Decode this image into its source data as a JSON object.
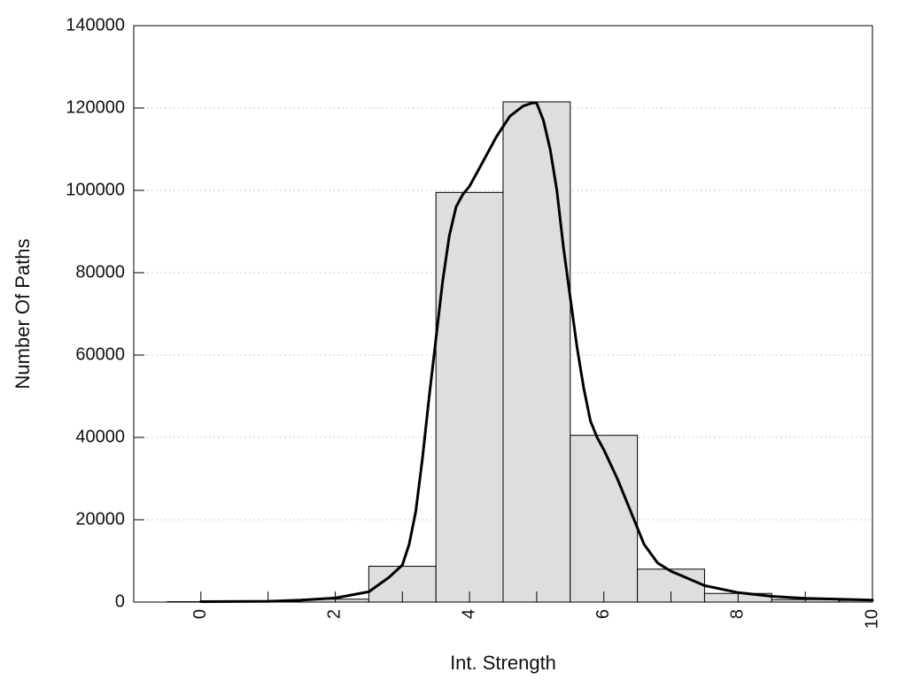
{
  "chart_data": {
    "type": "bar",
    "title": "",
    "xlabel": "Int. Strength",
    "ylabel": "Number Of Paths",
    "xlim": [
      -1,
      10
    ],
    "ylim": [
      0,
      140000
    ],
    "x_ticks": [
      "0",
      "2",
      "4",
      "6",
      "8",
      "10"
    ],
    "y_ticks": [
      "0",
      "20000",
      "40000",
      "60000",
      "80000",
      "100000",
      "120000",
      "140000"
    ],
    "grid": "horizontal-dotted",
    "bar_color": "#dedede",
    "bar_edge_color": "#000000",
    "bins": [
      {
        "x0": -0.5,
        "x1": 0.5,
        "value": 100
      },
      {
        "x0": 0.5,
        "x1": 1.5,
        "value": 150
      },
      {
        "x0": 1.5,
        "x1": 2.5,
        "value": 700
      },
      {
        "x0": 2.5,
        "x1": 3.5,
        "value": 8700
      },
      {
        "x0": 3.5,
        "x1": 4.5,
        "value": 99500
      },
      {
        "x0": 4.5,
        "x1": 5.5,
        "value": 121500
      },
      {
        "x0": 5.5,
        "x1": 6.5,
        "value": 40500
      },
      {
        "x0": 6.5,
        "x1": 7.5,
        "value": 8000
      },
      {
        "x0": 7.5,
        "x1": 8.5,
        "value": 2100
      },
      {
        "x0": 8.5,
        "x1": 9.5,
        "value": 600
      },
      {
        "x0": 9.5,
        "x1": 10.5,
        "value": 400
      }
    ],
    "curve": {
      "color": "#000000",
      "x": [
        0,
        1,
        1.5,
        2,
        2.5,
        2.8,
        3.0,
        3.1,
        3.2,
        3.3,
        3.4,
        3.5,
        3.6,
        3.7,
        3.8,
        3.9,
        4.0,
        4.2,
        4.4,
        4.6,
        4.8,
        4.95,
        5.0,
        5.1,
        5.2,
        5.3,
        5.4,
        5.5,
        5.6,
        5.7,
        5.8,
        5.9,
        6.0,
        6.2,
        6.4,
        6.6,
        6.8,
        7.0,
        7.5,
        8.0,
        8.5,
        9.0,
        9.5,
        10.0
      ],
      "y": [
        100,
        200,
        500,
        1000,
        2500,
        6000,
        9000,
        14000,
        22000,
        35000,
        50000,
        64000,
        78000,
        89000,
        96000,
        99000,
        101000,
        107000,
        113000,
        118000,
        120500,
        121300,
        121200,
        117000,
        110000,
        100000,
        86000,
        74000,
        62000,
        52000,
        44000,
        40000,
        37000,
        30000,
        22000,
        14000,
        9500,
        7500,
        4000,
        2300,
        1400,
        900,
        700,
        500
      ]
    }
  }
}
